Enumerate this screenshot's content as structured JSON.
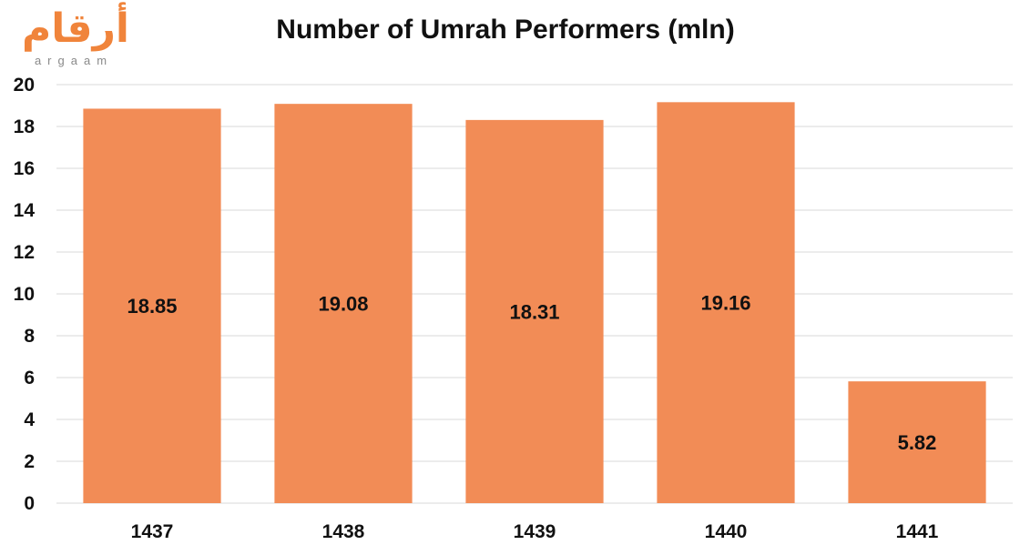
{
  "logo": {
    "arabic": "أرقام",
    "latin": "argaam"
  },
  "colors": {
    "bar": "#f28c56",
    "grid": "#d9d9d9",
    "logo": "#f0843b"
  },
  "chart_data": {
    "type": "bar",
    "title": "Number of Umrah Performers (mln)",
    "xlabel": "",
    "ylabel": "",
    "categories": [
      "1437",
      "1438",
      "1439",
      "1440",
      "1441"
    ],
    "values": [
      18.85,
      19.08,
      18.31,
      19.16,
      5.82
    ],
    "data_labels": [
      "18.85",
      "19.08",
      "18.31",
      "19.16",
      "5.82"
    ],
    "ylim": [
      0,
      20
    ],
    "yticks": [
      0,
      2,
      4,
      6,
      8,
      10,
      12,
      14,
      16,
      18,
      20
    ],
    "grid": true,
    "legend": "none"
  }
}
